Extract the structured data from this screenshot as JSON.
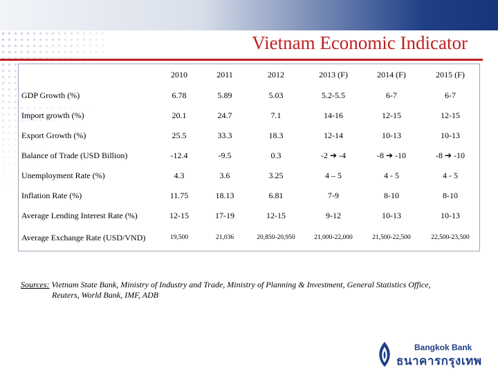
{
  "slide": {
    "title": "Vietnam Economic Indicator"
  },
  "table": {
    "headers": [
      "",
      "2010",
      "2011",
      "2012",
      "2013 (F)",
      "2014 (F)",
      "2015 (F)"
    ],
    "rows": [
      {
        "label": "GDP Growth (%)",
        "values": [
          "6.78",
          "5.89",
          "5.03",
          "5.2-5.5",
          "6-7",
          "6-7"
        ]
      },
      {
        "label": "Import growth (%)",
        "values": [
          "20.1",
          "24.7",
          "7.1",
          "14-16",
          "12-15",
          "12-15"
        ]
      },
      {
        "label": "Export Growth (%)",
        "values": [
          "25.5",
          "33.3",
          "18.3",
          "12-14",
          "10-13",
          "10-13"
        ]
      },
      {
        "label": "Balance of Trade (USD Billion)",
        "values": [
          "-12.4",
          "-9.5",
          "0.3",
          "-2 ➔ -4",
          "-8 ➔ -10",
          "-8 ➔ -10"
        ]
      },
      {
        "label": "Unemployment Rate (%)",
        "values": [
          "4.3",
          "3.6",
          "3.25",
          "4 – 5",
          "4 - 5",
          "4 - 5"
        ]
      },
      {
        "label": "Inflation Rate (%)",
        "values": [
          "11.75",
          "18.13",
          "6.81",
          "7-9",
          "8-10",
          "8-10"
        ]
      },
      {
        "label": "Average Lending Interest Rate (%)",
        "values": [
          "12-15",
          "17-19",
          "12-15",
          "9-12",
          "10-13",
          "10-13"
        ]
      },
      {
        "label": "Average Exchange Rate (USD/VND)",
        "values": [
          "19,500",
          "21,036",
          "20,850-20,950",
          "21,000-22,000",
          "21,500-22,500",
          "22,500-23,500"
        ]
      }
    ]
  },
  "sources": {
    "label": "Sources:",
    "line1": " Vietnam State Bank, Ministry of Industry and Trade, Ministry of Planning & Investment, General Statistics Office,",
    "line2": "Reuters, World Bank, IMF, ADB"
  },
  "logo": {
    "name_en": "Bangkok Bank",
    "name_th": "ธนาคารกรุงเทพ",
    "color": "#1f3f86"
  }
}
